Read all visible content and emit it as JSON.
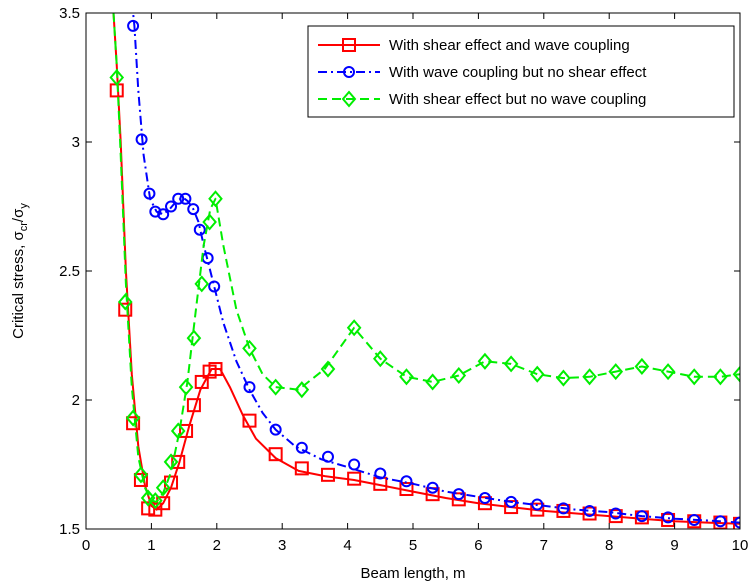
{
  "chart_data": {
    "type": "line",
    "title": "",
    "xlabel": "Beam length, m",
    "ylabel": {
      "text": "Critical stress, ",
      "sigma": "σ",
      "sub_cr": "cr",
      "slash": "/",
      "sub_y": "y"
    },
    "xlim": [
      0,
      10
    ],
    "ylim": [
      1.5,
      3.5
    ],
    "xticks": [
      0,
      1,
      2,
      3,
      4,
      5,
      6,
      7,
      8,
      9,
      10
    ],
    "xtick_labels": [
      "0",
      "1",
      "2",
      "3",
      "4",
      "5",
      "6",
      "7",
      "8",
      "9",
      "10"
    ],
    "yticks": [
      1.5,
      2,
      2.5,
      3,
      3.5
    ],
    "ytick_labels": [
      "1.5",
      "2",
      "2.5",
      "3",
      "3.5"
    ],
    "grid": false,
    "legend_position": "top-right",
    "series": [
      {
        "name": "With shear effect and wave coupling",
        "color": "#ff0000",
        "line_style": "solid",
        "marker": "square",
        "line_x": [
          0.42,
          0.47,
          0.53,
          0.61,
          0.7,
          0.8,
          0.9,
          1.0,
          1.08,
          1.18,
          1.3,
          1.43,
          1.58,
          1.75,
          1.92,
          2.05,
          2.2,
          2.4,
          2.6,
          2.9,
          3.25,
          3.65,
          4.1,
          4.5,
          5.0,
          5.5,
          6.0,
          6.5,
          7.0,
          7.5,
          8.0,
          8.5,
          9.0,
          9.5,
          10.0
        ],
        "line_y": [
          3.5,
          3.3,
          3.0,
          2.5,
          2.1,
          1.82,
          1.67,
          1.59,
          1.575,
          1.6,
          1.66,
          1.76,
          1.9,
          2.04,
          2.12,
          2.12,
          2.05,
          1.94,
          1.85,
          1.775,
          1.725,
          1.705,
          1.69,
          1.67,
          1.645,
          1.62,
          1.6,
          1.585,
          1.57,
          1.56,
          1.55,
          1.54,
          1.53,
          1.525,
          1.52
        ],
        "marker_x": [
          0.47,
          0.6,
          0.72,
          0.84,
          0.95,
          1.06,
          1.18,
          1.3,
          1.41,
          1.53,
          1.65,
          1.77,
          1.89,
          1.98,
          2.5,
          2.9,
          3.3,
          3.7,
          4.1,
          4.5,
          4.9,
          5.3,
          5.7,
          6.1,
          6.5,
          6.9,
          7.3,
          7.7,
          8.1,
          8.5,
          8.9,
          9.3,
          9.7,
          10.0
        ],
        "marker_y": [
          3.2,
          2.35,
          1.91,
          1.69,
          1.58,
          1.575,
          1.6,
          1.68,
          1.76,
          1.88,
          1.98,
          2.07,
          2.11,
          2.12,
          1.92,
          1.79,
          1.735,
          1.71,
          1.695,
          1.675,
          1.655,
          1.635,
          1.615,
          1.6,
          1.585,
          1.575,
          1.57,
          1.56,
          1.55,
          1.545,
          1.535,
          1.53,
          1.525,
          1.52
        ]
      },
      {
        "name": "With wave coupling but no shear effect",
        "color": "#0000ff",
        "line_style": "dashdot",
        "marker": "circle",
        "line_x": [
          0.62,
          0.68,
          0.74,
          0.8,
          0.88,
          0.98,
          1.08,
          1.18,
          1.28,
          1.38,
          1.48,
          1.56,
          1.64,
          1.72,
          1.8,
          1.88,
          1.96,
          2.1,
          2.3,
          2.5,
          2.7,
          2.9,
          3.2,
          3.6,
          4.0,
          4.5,
          5.0,
          5.5,
          6.0,
          6.5,
          7.0,
          7.5,
          8.0,
          8.5,
          9.0,
          9.5,
          10.0
        ],
        "line_y": [
          3.6,
          3.6,
          3.45,
          3.2,
          2.95,
          2.78,
          2.73,
          2.72,
          2.74,
          2.77,
          2.785,
          2.77,
          2.74,
          2.69,
          2.6,
          2.52,
          2.44,
          2.3,
          2.15,
          2.04,
          1.95,
          1.885,
          1.82,
          1.77,
          1.74,
          1.7,
          1.675,
          1.645,
          1.625,
          1.605,
          1.59,
          1.575,
          1.565,
          1.55,
          1.54,
          1.533,
          1.525
        ],
        "marker_x": [
          0.72,
          0.85,
          0.97,
          1.06,
          1.18,
          1.3,
          1.41,
          1.52,
          1.64,
          1.74,
          1.86,
          1.96,
          2.5,
          2.9,
          3.3,
          3.7,
          4.1,
          4.5,
          4.9,
          5.3,
          5.7,
          6.1,
          6.5,
          6.9,
          7.3,
          7.7,
          8.1,
          8.5,
          8.9,
          9.3,
          9.7,
          10.0
        ],
        "marker_y": [
          3.45,
          3.01,
          2.8,
          2.73,
          2.72,
          2.75,
          2.78,
          2.78,
          2.74,
          2.66,
          2.55,
          2.44,
          2.05,
          1.885,
          1.815,
          1.78,
          1.75,
          1.715,
          1.685,
          1.66,
          1.635,
          1.62,
          1.605,
          1.595,
          1.58,
          1.57,
          1.56,
          1.55,
          1.545,
          1.535,
          1.53,
          1.525
        ]
      },
      {
        "name": "With shear effect but no wave coupling",
        "color": "#00ee00",
        "line_style": "dashed",
        "marker": "diamond",
        "line_x": [
          0.42,
          0.47,
          0.53,
          0.61,
          0.7,
          0.8,
          0.9,
          1.0,
          1.08,
          1.18,
          1.3,
          1.43,
          1.55,
          1.68,
          1.8,
          1.9,
          1.98,
          2.1,
          2.3,
          2.5,
          2.7,
          2.9,
          3.25,
          3.65,
          4.1,
          4.5,
          4.9,
          5.3,
          5.7,
          6.1,
          6.5,
          6.9,
          7.3,
          7.7,
          8.1,
          8.5,
          8.9,
          9.3,
          9.7,
          10.0
        ],
        "line_y": [
          3.5,
          3.3,
          2.95,
          2.45,
          2.05,
          1.78,
          1.66,
          1.61,
          1.605,
          1.64,
          1.72,
          1.88,
          2.07,
          2.35,
          2.6,
          2.74,
          2.78,
          2.6,
          2.35,
          2.2,
          2.1,
          2.05,
          2.04,
          2.12,
          2.28,
          2.16,
          2.09,
          2.07,
          2.095,
          2.15,
          2.14,
          2.1,
          2.085,
          2.09,
          2.11,
          2.13,
          2.11,
          2.09,
          2.09,
          2.1
        ],
        "marker_x": [
          0.47,
          0.6,
          0.72,
          0.84,
          0.95,
          1.06,
          1.18,
          1.3,
          1.41,
          1.53,
          1.65,
          1.77,
          1.89,
          1.98,
          2.5,
          2.9,
          3.3,
          3.7,
          4.1,
          4.5,
          4.9,
          5.3,
          5.7,
          6.1,
          6.5,
          6.9,
          7.3,
          7.7,
          8.1,
          8.5,
          8.9,
          9.3,
          9.7,
          10.0
        ],
        "marker_y": [
          3.25,
          2.38,
          1.93,
          1.71,
          1.62,
          1.61,
          1.66,
          1.76,
          1.88,
          2.05,
          2.24,
          2.45,
          2.69,
          2.78,
          2.2,
          2.05,
          2.04,
          2.12,
          2.28,
          2.16,
          2.09,
          2.07,
          2.095,
          2.15,
          2.14,
          2.1,
          2.085,
          2.09,
          2.11,
          2.13,
          2.11,
          2.09,
          2.09,
          2.1
        ]
      }
    ]
  }
}
